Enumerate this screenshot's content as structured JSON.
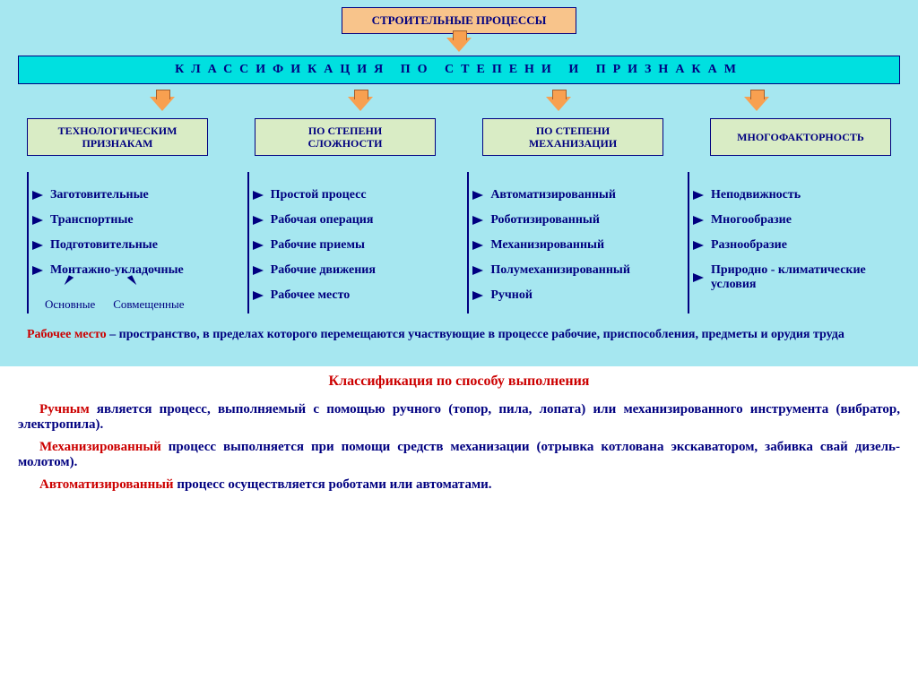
{
  "colors": {
    "bg_top": "#a6e7f0",
    "orange": "#f8c48b",
    "cyan": "#00e0e0",
    "green": "#d9ecc5",
    "navy": "#000080",
    "red": "#cc0000"
  },
  "title": "СТРОИТЕЛЬНЫЕ ПРОЦЕССЫ",
  "classification_bar": "КЛАССИФИКАЦИЯ ПО СТЕПЕНИ И ПРИЗНАКАМ",
  "categories": [
    {
      "label_line1": "ТЕХНОЛОГИЧЕСКИМ",
      "label_line2": "ПРИЗНАКАМ"
    },
    {
      "label_line1": "ПО СТЕПЕНИ",
      "label_line2": "СЛОЖНОСТИ"
    },
    {
      "label_line1": "ПО СТЕПЕНИ",
      "label_line2": "МЕХАНИЗАЦИИ"
    },
    {
      "label_line1": "МНОГОФАКТОРНОСТЬ",
      "label_line2": ""
    }
  ],
  "col0": {
    "items": [
      "Заготовительные",
      "Транспортные",
      "Подготовительные",
      "Монтажно-укладочные"
    ],
    "subs": [
      "Основные",
      "Совмещенные"
    ]
  },
  "col1": {
    "items": [
      "Простой процесс",
      "Рабочая операция",
      "Рабочие приемы",
      "Рабочие движения",
      "Рабочее место"
    ]
  },
  "col2": {
    "items": [
      "Автоматизированный",
      "Роботизированный",
      "Механизированный",
      "Полумеханизированный",
      "Ручной"
    ]
  },
  "col3": {
    "items": [
      "Неподвижность",
      "Многообразие",
      "Разнообразие",
      "Природно - климатические условия"
    ]
  },
  "definition": {
    "term": "Рабочее место",
    "rest": " – пространство, в пределах которого перемещаются участвующие в процессе рабочие, приспособления, предметы и орудия труда"
  },
  "bottom_heading": "Классификация по способу выполнения",
  "p1": {
    "red": "Ручным ",
    "rest": "является процесс, выполняемый с помощью ручного (топор, пила, лопата) или механизированного инструмента (вибратор, электропила)."
  },
  "p2": {
    "red": "Механизированный ",
    "rest": "процесс выполняется при помощи средств механизации (отрывка котлована экскаватором, забивка свай дизель-молотом)."
  },
  "p3": {
    "red": "Автоматизированный ",
    "rest": "процесс осуществляется роботами или автоматами."
  }
}
